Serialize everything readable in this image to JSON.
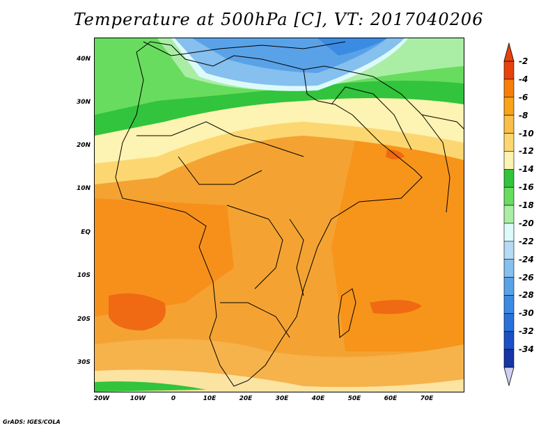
{
  "title": "Temperature at 500hPa [C], VT: 2017040206",
  "credit": "GrADS: IGES/COLA",
  "map": {
    "lat_labels": [
      "40N",
      "30N",
      "20N",
      "10N",
      "EQ",
      "10S",
      "20S",
      "30S"
    ],
    "lon_labels": [
      "20W",
      "10W",
      "0",
      "10E",
      "20E",
      "30E",
      "40E",
      "50E",
      "60E",
      "70E"
    ]
  },
  "colorbar": {
    "labels": [
      "-2",
      "-4",
      "-6",
      "-8",
      "-10",
      "-12",
      "-14",
      "-16",
      "-18",
      "-20",
      "-22",
      "-24",
      "-26",
      "-28",
      "-30",
      "-32",
      "-34"
    ],
    "colors": [
      "#e8420c",
      "#f77e0a",
      "#f9a319",
      "#f9bf4a",
      "#fcd771",
      "#fdf3b2",
      "#31c43c",
      "#68dc5e",
      "#aaeea6",
      "#dcfafa",
      "#b6dbf4",
      "#85c0ee",
      "#5aa2e8",
      "#3c8be3",
      "#2a72da",
      "#1b50c6",
      "#1635a6"
    ],
    "over_color": "#e8420c",
    "under_color": "#d0d0f0"
  }
}
